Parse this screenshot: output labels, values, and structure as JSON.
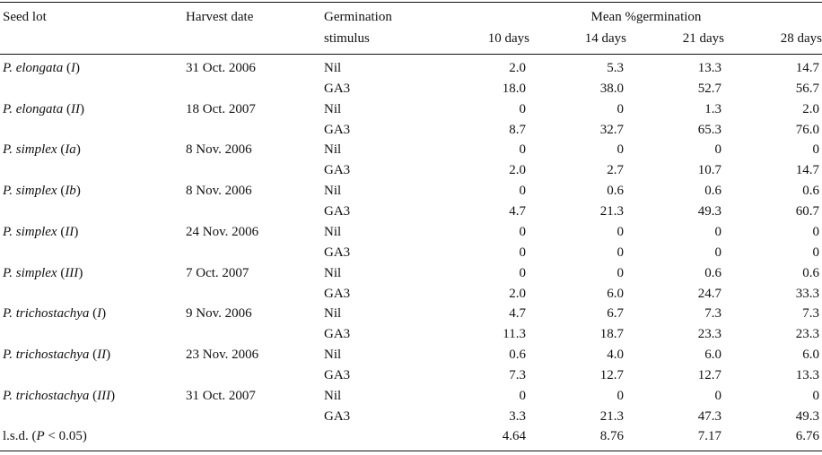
{
  "headers": {
    "seed_lot": "Seed lot",
    "harvest_date": "Harvest date",
    "stimulus_line1": "Germination",
    "stimulus_line2": "stimulus",
    "mean_title": "Mean %germination",
    "days": [
      "10 days",
      "14 days",
      "21 days",
      "28 days"
    ]
  },
  "rows": [
    {
      "species": "P. elongata",
      "lot": "I",
      "date": "31 Oct. 2006",
      "nil": [
        "2.0",
        "5.3",
        "13.3",
        "14.7"
      ],
      "ga3": [
        "18.0",
        "38.0",
        "52.7",
        "56.7"
      ]
    },
    {
      "species": "P. elongata",
      "lot": "II",
      "date": "18 Oct. 2007",
      "nil": [
        "0",
        "0",
        "1.3",
        "2.0"
      ],
      "ga3": [
        "8.7",
        "32.7",
        "65.3",
        "76.0"
      ]
    },
    {
      "species": "P. simplex",
      "lot": "Ia",
      "date": "8 Nov. 2006",
      "nil": [
        "0",
        "0",
        "0",
        "0"
      ],
      "ga3": [
        "2.0",
        "2.7",
        "10.7",
        "14.7"
      ]
    },
    {
      "species": "P. simplex",
      "lot": "Ib",
      "date": "8 Nov. 2006",
      "nil": [
        "0",
        "0.6",
        "0.6",
        "0.6"
      ],
      "ga3": [
        "4.7",
        "21.3",
        "49.3",
        "60.7"
      ]
    },
    {
      "species": "P. simplex",
      "lot": "II",
      "date": "24 Nov. 2006",
      "nil": [
        "0",
        "0",
        "0",
        "0"
      ],
      "ga3": [
        "0",
        "0",
        "0",
        "0"
      ]
    },
    {
      "species": "P. simplex",
      "lot": "III",
      "date": "7 Oct. 2007",
      "nil": [
        "0",
        "0",
        "0.6",
        "0.6"
      ],
      "ga3": [
        "2.0",
        "6.0",
        "24.7",
        "33.3"
      ]
    },
    {
      "species": "P. trichostachya",
      "lot": "I",
      "date": "9 Nov. 2006",
      "nil": [
        "4.7",
        "6.7",
        "7.3",
        "7.3"
      ],
      "ga3": [
        "11.3",
        "18.7",
        "23.3",
        "23.3"
      ]
    },
    {
      "species": "P. trichostachya",
      "lot": "II",
      "date": "23 Nov. 2006",
      "nil": [
        "0.6",
        "4.0",
        "6.0",
        "6.0"
      ],
      "ga3": [
        "7.3",
        "12.7",
        "12.7",
        "13.3"
      ]
    },
    {
      "species": "P. trichostachya",
      "lot": "III",
      "date": "31 Oct. 2007",
      "nil": [
        "0",
        "0",
        "0",
        "0"
      ],
      "ga3": [
        "3.3",
        "21.3",
        "47.3",
        "49.3"
      ]
    }
  ],
  "stimulus_labels": {
    "nil": "Nil",
    "ga3": "GA3"
  },
  "lsd": {
    "prefix": "l.s.d. (",
    "p": "P",
    "suffix": " < 0.05)",
    "values": [
      "4.64",
      "8.76",
      "7.17",
      "6.76"
    ]
  }
}
